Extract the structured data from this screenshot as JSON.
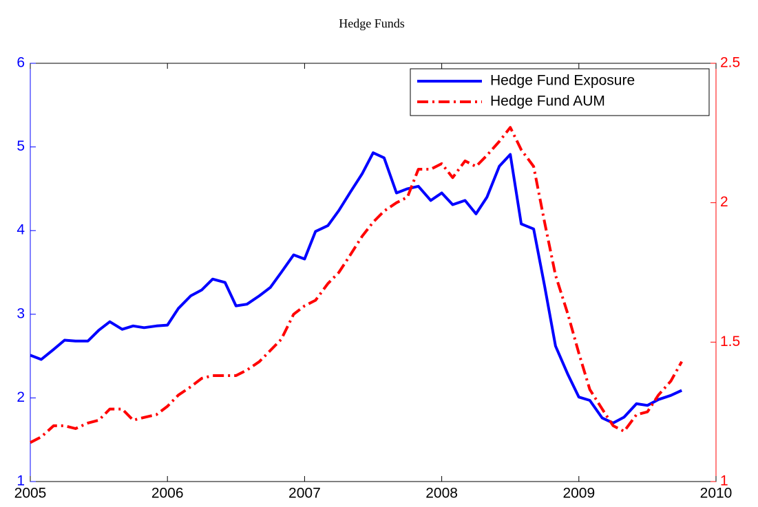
{
  "chart_data": {
    "type": "line",
    "title": "Hedge Funds",
    "x": [
      2005,
      2005.08,
      2005.17,
      2005.25,
      2005.33,
      2005.42,
      2005.5,
      2005.58,
      2005.67,
      2005.75,
      2005.83,
      2005.92,
      2006,
      2006.08,
      2006.17,
      2006.25,
      2006.33,
      2006.42,
      2006.5,
      2006.58,
      2006.67,
      2006.75,
      2006.83,
      2006.92,
      2007,
      2007.08,
      2007.17,
      2007.25,
      2007.33,
      2007.42,
      2007.5,
      2007.58,
      2007.67,
      2007.75,
      2007.83,
      2007.92,
      2008,
      2008.08,
      2008.17,
      2008.25,
      2008.33,
      2008.42,
      2008.5,
      2008.58,
      2008.67,
      2008.75,
      2008.83,
      2008.92,
      2009,
      2009.08,
      2009.17,
      2009.25,
      2009.33,
      2009.42,
      2009.5,
      2009.58,
      2009.67,
      2009.75
    ],
    "series": [
      {
        "name": "Hedge Fund Exposure",
        "color": "#0000ff",
        "linestyle": "solid",
        "values": [
          2.51,
          2.46,
          2.58,
          2.69,
          2.68,
          2.68,
          2.81,
          2.91,
          2.82,
          2.86,
          2.84,
          2.86,
          2.87,
          3.07,
          3.22,
          3.29,
          3.42,
          3.38,
          3.1,
          3.12,
          3.22,
          3.32,
          3.5,
          3.71,
          3.66,
          3.99,
          4.06,
          4.24,
          4.45,
          4.68,
          4.93,
          4.87,
          4.45,
          4.5,
          4.53,
          4.36,
          4.45,
          4.31,
          4.36,
          4.2,
          4.4,
          4.77,
          4.91,
          4.08,
          4.02,
          3.34,
          2.62,
          2.28,
          2.01,
          1.97,
          1.76,
          1.7,
          1.77,
          1.93,
          1.91,
          1.98,
          2.03,
          2.09
        ]
      },
      {
        "name": "Hedge Fund AUM",
        "color": "#ff0000",
        "linestyle": "dashdot",
        "axis": "y2",
        "values": [
          1.14,
          1.16,
          1.2,
          1.2,
          1.19,
          1.21,
          1.22,
          1.26,
          1.26,
          1.22,
          1.23,
          1.24,
          1.27,
          1.31,
          1.34,
          1.37,
          1.38,
          1.38,
          1.38,
          1.4,
          1.43,
          1.47,
          1.51,
          1.6,
          1.63,
          1.65,
          1.71,
          1.75,
          1.81,
          1.88,
          1.93,
          1.97,
          2.0,
          2.02,
          2.12,
          2.12,
          2.14,
          2.09,
          2.15,
          2.13,
          2.17,
          2.22,
          2.27,
          2.19,
          2.13,
          1.93,
          1.74,
          1.6,
          1.46,
          1.33,
          1.26,
          1.2,
          1.18,
          1.24,
          1.25,
          1.31,
          1.36,
          1.43
        ]
      }
    ],
    "xlim": [
      2005,
      2010
    ],
    "xticks": [
      2005,
      2006,
      2007,
      2008,
      2009,
      2010
    ],
    "ylim": [
      1,
      6
    ],
    "yticks": [
      1,
      2,
      3,
      4,
      5,
      6
    ],
    "y2lim": [
      1,
      2.5
    ],
    "y2ticks": [
      1,
      1.5,
      2,
      2.5
    ],
    "legend": "upper right",
    "grid": false
  }
}
